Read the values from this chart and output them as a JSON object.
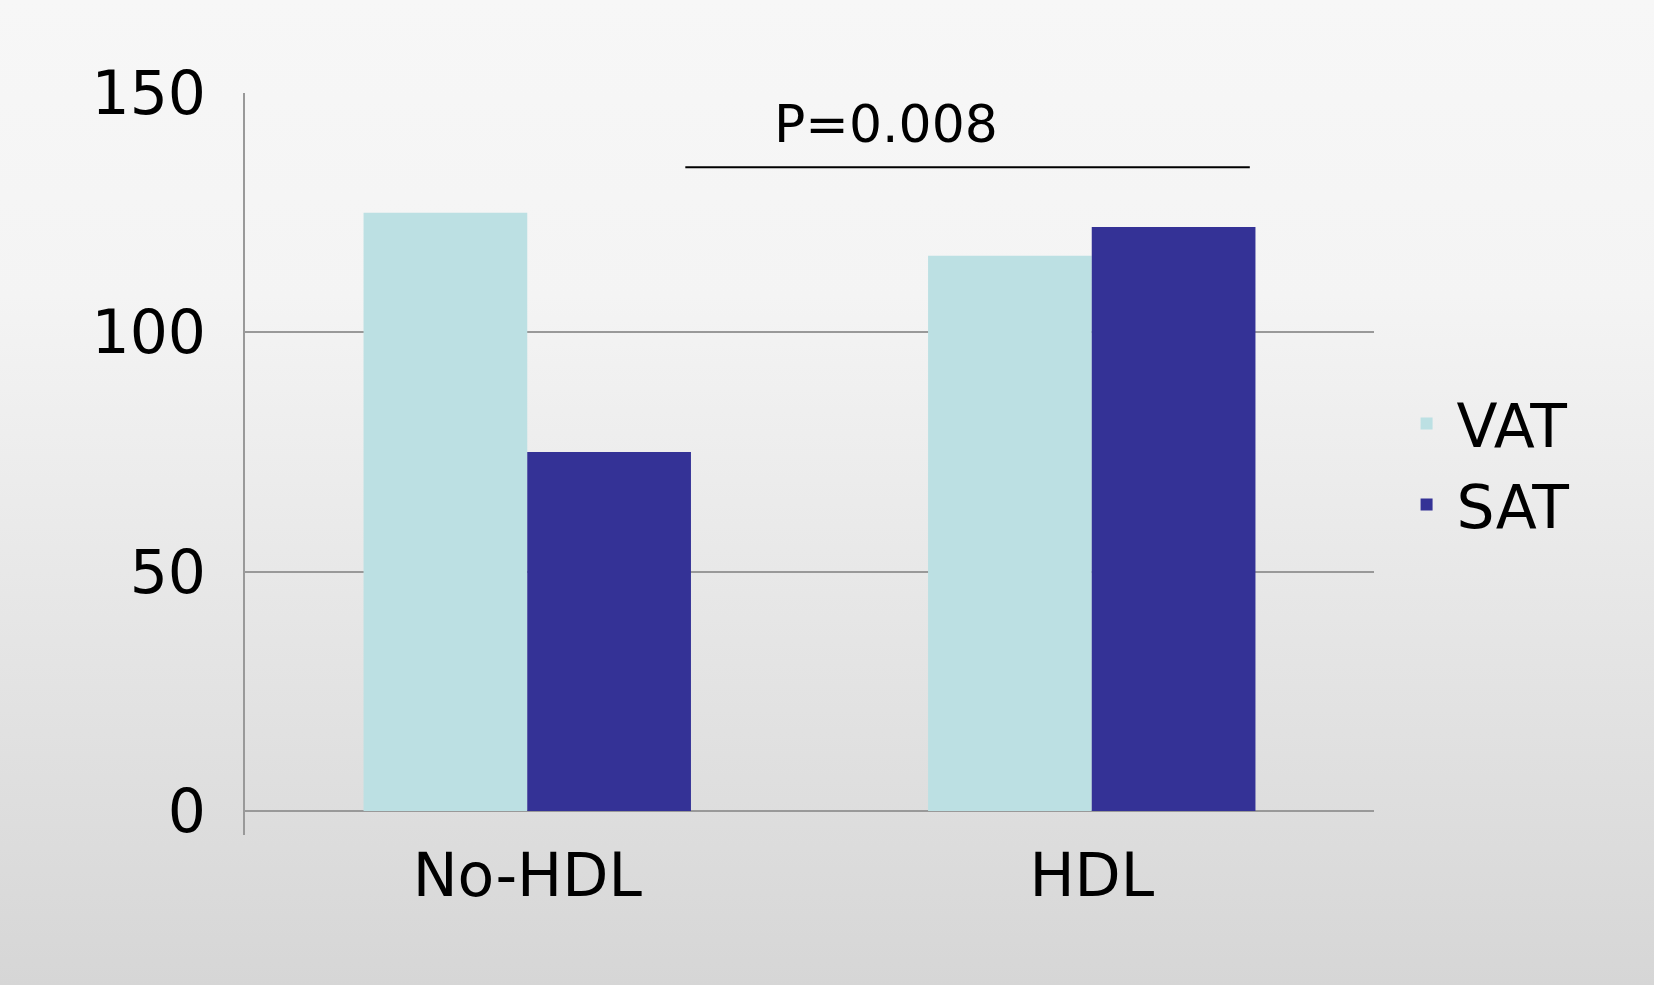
{
  "chart_data": {
    "type": "bar",
    "categories": [
      "No-HDL",
      "HDL"
    ],
    "series": [
      {
        "name": "VAT",
        "color": "#bce0e3",
        "values": [
          125,
          116
        ]
      },
      {
        "name": "SAT",
        "color": "#343296",
        "values": [
          75,
          122
        ]
      }
    ],
    "ylim": [
      -5,
      150
    ],
    "yticks": [
      0,
      50,
      100,
      150
    ],
    "grid": "y",
    "legend": "right",
    "annotations": [
      "P=0.008"
    ]
  }
}
